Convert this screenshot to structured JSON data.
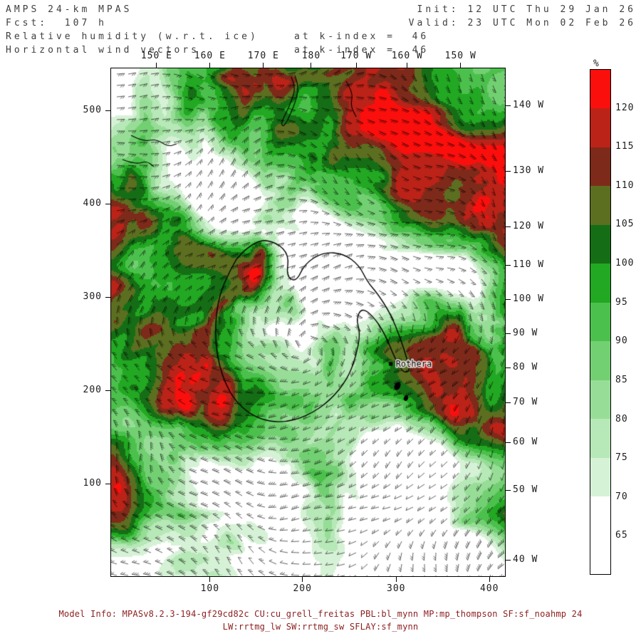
{
  "header": {
    "model": "AMPS 24-km MPAS",
    "fcst": "Fcst:  107 h",
    "field1": "Relative humidity (w.r.t. ice)",
    "field1_level": "at k-index =  46",
    "field2": "Horizontal wind vectors",
    "field2_level": "at k-index =  46",
    "init": "Init: 12 UTC Thu 29 Jan 26",
    "valid": "Valid: 23 UTC Mon 02 Feb 26"
  },
  "axes": {
    "top": [
      {
        "label": "150 E",
        "f": 0.117
      },
      {
        "label": "160 E",
        "f": 0.252
      },
      {
        "label": "170 E",
        "f": 0.387
      },
      {
        "label": "180",
        "f": 0.508
      },
      {
        "label": "170 W",
        "f": 0.622
      },
      {
        "label": "160 W",
        "f": 0.751
      },
      {
        "label": "150 W",
        "f": 0.886
      }
    ],
    "left": [
      {
        "label": "500",
        "f": 0.084
      },
      {
        "label": "400",
        "f": 0.267
      },
      {
        "label": "300",
        "f": 0.45
      },
      {
        "label": "200",
        "f": 0.634
      },
      {
        "label": "100",
        "f": 0.817
      }
    ],
    "bottom": [
      {
        "label": "100",
        "f": 0.252
      },
      {
        "label": "200",
        "f": 0.486
      },
      {
        "label": "300",
        "f": 0.723
      },
      {
        "label": "400",
        "f": 0.959
      }
    ],
    "right": [
      {
        "label": "140 W",
        "f": 0.074
      },
      {
        "label": "130 W",
        "f": 0.203
      },
      {
        "label": "120 W",
        "f": 0.312
      },
      {
        "label": "110 W",
        "f": 0.387
      },
      {
        "label": "100 W",
        "f": 0.455
      },
      {
        "label": "90 W",
        "f": 0.522
      },
      {
        "label": "80 W",
        "f": 0.589
      },
      {
        "label": "70 W",
        "f": 0.657
      },
      {
        "label": "60 W",
        "f": 0.736
      },
      {
        "label": "50 W",
        "f": 0.829
      },
      {
        "label": "40 W",
        "f": 0.966
      }
    ]
  },
  "colorbar": {
    "title": "%",
    "labels": [
      "120",
      "115",
      "110",
      "105",
      "100",
      "95",
      "90",
      "85",
      "80",
      "75",
      "70",
      "65"
    ],
    "colors_top_to_bottom": [
      "#fa0f0c",
      "#bb2218",
      "#7e2a1a",
      "#5c6e20",
      "#156e15",
      "#22a822",
      "#4cc04c",
      "#72d072",
      "#97dd97",
      "#b7e8b7",
      "#d6f2d6",
      "#ffffff",
      "#ffffff"
    ]
  },
  "map": {
    "stations": [
      {
        "name": "Rothera",
        "fx": 0.71,
        "fy": 0.582
      }
    ]
  },
  "footer": {
    "line1": "Model Info: MPASv8.2.3-194-gf29cd82c CU:cu_grell_freitas PBL:bl_mynn MP:mp_thompson SF:sf_noahmp 24",
    "line2": "LW:rrtmg_lw SW:rrtmg_sw SFLAY:sf_mynn"
  },
  "chart_data": {
    "type": "heatmap",
    "title": "Relative humidity (w.r.t. ice) with horizontal wind vectors",
    "model": "AMPS 24-km MPAS",
    "forecast_hour": 107,
    "k_index": 46,
    "init": "12 UTC Thu 29 Jan 26",
    "valid": "23 UTC Mon 02 Feb 26",
    "units": "%",
    "levels": [
      65,
      70,
      75,
      80,
      85,
      90,
      95,
      100,
      105,
      110,
      115,
      120
    ],
    "colors_low_to_high": [
      "#ffffff",
      "#ffffff",
      "#d6f2d6",
      "#b7e8b7",
      "#97dd97",
      "#72d072",
      "#4cc04c",
      "#22a822",
      "#156e15",
      "#5c6e20",
      "#7e2a1a",
      "#bb2218",
      "#fa0f0c"
    ],
    "x_ticks_bottom_grid": [
      100,
      200,
      300,
      400
    ],
    "y_ticks_left_grid": [
      500,
      400,
      300,
      200,
      100
    ],
    "lon_ticks_top": [
      "150 E",
      "160 E",
      "170 E",
      "180",
      "170 W",
      "160 W",
      "150 W"
    ],
    "lon_ticks_right": [
      "140 W",
      "130 W",
      "120 W",
      "110 W",
      "100 W",
      "90 W",
      "80 W",
      "70 W",
      "60 W",
      "50 W",
      "40 W"
    ],
    "projection": "polar stereographic over Antarctica",
    "overlays": [
      "horizontal wind barbs",
      "Antarctic coastline",
      "station: Rothera"
    ]
  }
}
